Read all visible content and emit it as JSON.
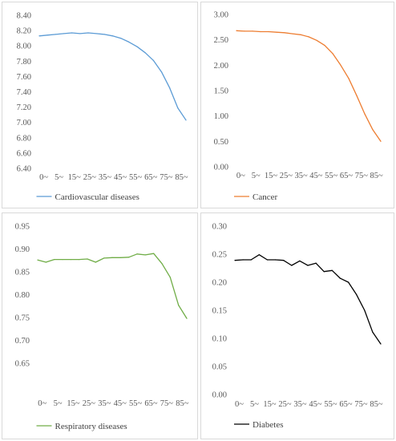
{
  "chart_data": [
    {
      "type": "line",
      "categories": [
        "0~",
        "5~",
        "15~",
        "25~",
        "35~",
        "45~",
        "55~",
        "65~",
        "75~",
        "85~"
      ],
      "x": [
        "0~",
        "1~",
        "5~",
        "10~",
        "15~",
        "20~",
        "25~",
        "30~",
        "35~",
        "40~",
        "45~",
        "50~",
        "55~",
        "60~",
        "65~",
        "70~",
        "75~",
        "80~",
        "85~"
      ],
      "series": [
        {
          "name": "Cardiovascular diseases",
          "color": "#5b9bd5",
          "values": [
            8.13,
            8.14,
            8.15,
            8.16,
            8.17,
            8.16,
            8.17,
            8.16,
            8.15,
            8.13,
            8.1,
            8.05,
            7.99,
            7.91,
            7.81,
            7.66,
            7.45,
            7.19,
            7.03
          ]
        }
      ],
      "ylim": [
        6.4,
        8.4
      ],
      "yticks": [
        "6.40",
        "6.60",
        "6.80",
        "7.00",
        "7.20",
        "7.40",
        "7.60",
        "7.80",
        "8.00",
        "8.20",
        "8.40"
      ],
      "legend_position": "bottom"
    },
    {
      "type": "line",
      "categories": [
        "0~",
        "5~",
        "15~",
        "25~",
        "35~",
        "45~",
        "55~",
        "65~",
        "75~",
        "85~"
      ],
      "x": [
        "0~",
        "1~",
        "5~",
        "10~",
        "15~",
        "20~",
        "25~",
        "30~",
        "35~",
        "40~",
        "45~",
        "50~",
        "55~",
        "60~",
        "65~",
        "70~",
        "75~",
        "80~",
        "85~"
      ],
      "series": [
        {
          "name": "Cancer",
          "color": "#ed7d31",
          "values": [
            2.68,
            2.67,
            2.67,
            2.66,
            2.66,
            2.65,
            2.64,
            2.62,
            2.6,
            2.56,
            2.49,
            2.39,
            2.23,
            2.0,
            1.74,
            1.4,
            1.04,
            0.73,
            0.5
          ]
        }
      ],
      "ylim": [
        0.0,
        3.0
      ],
      "yticks": [
        "0.00",
        "0.50",
        "1.00",
        "1.50",
        "2.00",
        "2.50",
        "3.00"
      ],
      "legend_position": "bottom"
    },
    {
      "type": "line",
      "categories": [
        "0~",
        "5~",
        "15~",
        "25~",
        "35~",
        "45~",
        "55~",
        "65~",
        "75~",
        "85~"
      ],
      "x": [
        "0~",
        "1~",
        "5~",
        "10~",
        "15~",
        "20~",
        "25~",
        "30~",
        "35~",
        "40~",
        "45~",
        "50~",
        "55~",
        "60~",
        "65~",
        "70~",
        "75~",
        "80~",
        "85~"
      ],
      "series": [
        {
          "name": "Respiratory diseases",
          "color": "#70ad47",
          "values": [
            0.876,
            0.871,
            0.877,
            0.877,
            0.877,
            0.877,
            0.878,
            0.871,
            0.88,
            0.881,
            0.881,
            0.882,
            0.889,
            0.887,
            0.89,
            0.868,
            0.838,
            0.777,
            0.748
          ]
        }
      ],
      "ylim": [
        0.65,
        0.95
      ],
      "yticks": [
        "0.65",
        "0.70",
        "0.75",
        "0.80",
        "0.85",
        "0.90",
        "0.95"
      ],
      "legend_position": "bottom"
    },
    {
      "type": "line",
      "categories": [
        "0~",
        "5~",
        "15~",
        "25~",
        "35~",
        "45~",
        "55~",
        "65~",
        "75~",
        "85~"
      ],
      "x": [
        "0~",
        "1~",
        "5~",
        "10~",
        "15~",
        "20~",
        "25~",
        "30~",
        "35~",
        "40~",
        "45~",
        "50~",
        "55~",
        "60~",
        "65~",
        "70~",
        "75~",
        "80~",
        "85~"
      ],
      "series": [
        {
          "name": "Diabetes",
          "color": "#000000",
          "values": [
            0.239,
            0.24,
            0.24,
            0.249,
            0.24,
            0.24,
            0.239,
            0.23,
            0.238,
            0.23,
            0.234,
            0.219,
            0.221,
            0.207,
            0.2,
            0.178,
            0.15,
            0.111,
            0.09
          ]
        }
      ],
      "ylim": [
        0.0,
        0.3
      ],
      "yticks": [
        "0.00",
        "0.05",
        "0.10",
        "0.15",
        "0.20",
        "0.25",
        "0.30"
      ],
      "legend_position": "bottom"
    }
  ]
}
